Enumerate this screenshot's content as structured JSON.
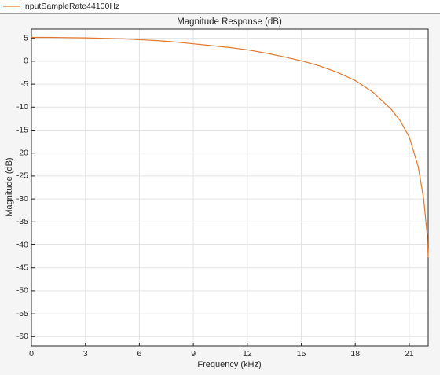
{
  "chart_data": {
    "type": "line",
    "title": "Magnitude Response (dB)",
    "x_label": "Frequency (kHz)",
    "y_label": "Magnitude (dB)",
    "x": [
      0,
      1,
      2,
      3,
      4,
      5,
      6,
      7,
      8,
      9,
      10,
      11,
      12,
      13,
      14,
      15,
      16,
      17,
      18,
      19,
      20,
      20.5,
      21,
      21.5,
      21.8,
      22,
      22.05
    ],
    "series": [
      {
        "name": "InputSampleRate44100Hz",
        "color": "#e2782d",
        "values": [
          5.2,
          5.2,
          5.15,
          5.1,
          5.0,
          4.9,
          4.7,
          4.5,
          4.2,
          3.8,
          3.4,
          3.0,
          2.5,
          1.8,
          1.0,
          0.1,
          -1.0,
          -2.4,
          -4.2,
          -6.8,
          -10.5,
          -13,
          -16.5,
          -23,
          -30,
          -38,
          -42.7
        ]
      }
    ],
    "xlim": [
      0,
      22.05
    ],
    "xticks": [
      0,
      3,
      6,
      9,
      12,
      15,
      18,
      21
    ],
    "ylim": [
      -62,
      7
    ],
    "yticks": [
      5,
      0,
      -5,
      -10,
      -15,
      -20,
      -25,
      -30,
      -35,
      -40,
      -45,
      -50,
      -55,
      -60
    ],
    "grid": true,
    "legend": "top-left"
  }
}
